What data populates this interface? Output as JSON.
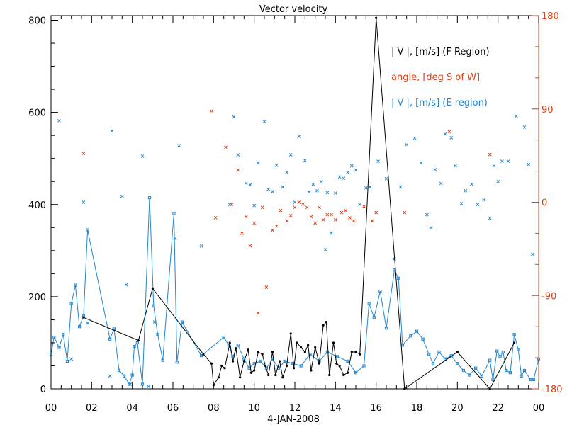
{
  "chart_data": {
    "type": "line",
    "title": "Vector velocity",
    "xlabel": "4-JAN-2008",
    "x_ticks": [
      "00",
      "02",
      "04",
      "06",
      "08",
      "10",
      "12",
      "14",
      "16",
      "18",
      "20",
      "22",
      "00"
    ],
    "xlim": [
      0,
      24
    ],
    "left_axis": {
      "ylim": [
        0,
        810
      ],
      "ticks": [
        "0",
        "200",
        "400",
        "600",
        "800"
      ]
    },
    "right_axis": {
      "ylim": [
        -180,
        180
      ],
      "ticks": [
        "-180",
        "-90",
        "0",
        "90",
        "180"
      ],
      "color": "#d94016"
    },
    "legend_position": "top-right",
    "colors": {
      "f_region": "#000000",
      "angle": "#d94016",
      "e_region": "#1f86d1",
      "e_cross": "#1f86d1"
    },
    "series": [
      {
        "name": "| V |, [m/s] (F Region)",
        "axis": "left",
        "style": "line-markers",
        "x": [
          1.6,
          4.3,
          5.0,
          7.5,
          7.9,
          8.0,
          8.25,
          8.4,
          8.55,
          8.8,
          8.95,
          9.1,
          9.3,
          9.5,
          9.7,
          9.85,
          10.0,
          10.2,
          10.4,
          10.55,
          10.7,
          10.9,
          11.05,
          11.25,
          11.4,
          11.6,
          11.8,
          11.95,
          12.1,
          12.3,
          12.5,
          12.65,
          12.8,
          13.0,
          13.2,
          13.4,
          13.55,
          13.7,
          13.9,
          14.05,
          14.2,
          14.4,
          14.6,
          14.8,
          15.0,
          15.2,
          16.0,
          17.4,
          20.0,
          21.6,
          22.8
        ],
        "y": [
          155,
          105,
          218,
          75,
          55,
          8,
          25,
          50,
          45,
          100,
          60,
          88,
          25,
          60,
          85,
          35,
          40,
          80,
          75,
          50,
          30,
          80,
          30,
          60,
          25,
          50,
          120,
          45,
          100,
          90,
          80,
          95,
          40,
          90,
          55,
          138,
          145,
          30,
          100,
          55,
          50,
          30,
          35,
          80,
          80,
          75,
          805,
          0,
          80,
          0,
          100
        ]
      },
      {
        "name": "angle, [deg S of W]",
        "axis": "right",
        "style": "crosses",
        "x": [
          1.6,
          7.9,
          8.1,
          8.6,
          8.9,
          9.2,
          9.4,
          9.6,
          9.8,
          10.0,
          10.2,
          10.4,
          10.6,
          10.9,
          11.1,
          11.3,
          11.6,
          11.8,
          12.0,
          12.2,
          12.4,
          12.6,
          12.8,
          13.0,
          13.2,
          13.4,
          13.6,
          13.8,
          14.0,
          14.3,
          14.5,
          14.7,
          14.9,
          15.4,
          15.8,
          16.0,
          17.4,
          19.6,
          21.6
        ],
        "y": [
          47,
          88,
          -15,
          53,
          -2,
          31,
          -30,
          -14,
          -42,
          -20,
          -107,
          -5,
          -82,
          -27,
          -23,
          -8,
          -18,
          -13,
          -5,
          0,
          -2,
          -5,
          -14,
          -20,
          -5,
          -17,
          -12,
          -12,
          -17,
          -10,
          -8,
          -15,
          -18,
          -4,
          -18,
          -10,
          -10,
          68,
          46
        ]
      },
      {
        "name": "| V |, [m/s] (E region)",
        "axis": "left",
        "style": "line-markers",
        "x": [
          0.0,
          0.15,
          0.4,
          0.6,
          0.8,
          1.0,
          1.2,
          1.4,
          1.6,
          1.8,
          2.9,
          3.1,
          3.35,
          3.6,
          3.85,
          4.0,
          4.1,
          4.25,
          4.5,
          4.85,
          5.05,
          5.25,
          5.5,
          6.05,
          6.2,
          6.45,
          7.4,
          8.5,
          8.75,
          8.95,
          9.2,
          9.5,
          9.75,
          10.0,
          10.3,
          10.6,
          10.9,
          11.2,
          11.5,
          11.9,
          12.3,
          12.75,
          13.2,
          13.6,
          14.1,
          14.6,
          15.0,
          15.4,
          15.65,
          15.9,
          16.2,
          16.5,
          16.9,
          17.1,
          17.3,
          17.7,
          18.0,
          18.3,
          18.6,
          18.8,
          19.1,
          19.4,
          19.7,
          20.0,
          20.3,
          20.6,
          20.9,
          21.2,
          21.6,
          21.75,
          21.95,
          22.1,
          22.25,
          22.4,
          22.6,
          22.8,
          23.0,
          23.15,
          23.3,
          23.6,
          23.75,
          24.0
        ],
        "y": [
          75,
          112,
          90,
          118,
          60,
          185,
          225,
          135,
          158,
          345,
          108,
          130,
          40,
          28,
          10,
          30,
          92,
          100,
          10,
          415,
          180,
          118,
          62,
          380,
          58,
          145,
          72,
          112,
          95,
          70,
          95,
          65,
          45,
          55,
          60,
          45,
          65,
          45,
          60,
          55,
          50,
          75,
          60,
          80,
          70,
          60,
          35,
          50,
          185,
          155,
          212,
          132,
          258,
          240,
          95,
          115,
          125,
          108,
          75,
          55,
          80,
          65,
          72,
          55,
          40,
          30,
          45,
          28,
          62,
          20,
          82,
          70,
          80,
          40,
          35,
          118,
          85,
          28,
          40,
          20,
          20,
          65
        ]
      },
      {
        "name": "",
        "axis": "left",
        "style": "crosses",
        "x": [
          0.4,
          1.0,
          1.6,
          1.8,
          2.9,
          3.0,
          3.5,
          3.7,
          3.9,
          4.5,
          4.8,
          5.1,
          6.1,
          6.3,
          7.4,
          8.8,
          9.0,
          9.2,
          9.6,
          9.8,
          10.0,
          10.2,
          10.5,
          10.7,
          10.9,
          11.1,
          11.4,
          11.6,
          11.8,
          12.0,
          12.2,
          12.5,
          12.7,
          12.9,
          13.1,
          13.3,
          13.5,
          13.6,
          13.8,
          14.0,
          14.2,
          14.4,
          14.6,
          14.8,
          15.0,
          15.2,
          15.5,
          15.7,
          16.1,
          16.5,
          16.9,
          17.2,
          17.5,
          17.9,
          18.2,
          18.5,
          18.7,
          18.9,
          19.2,
          19.4,
          19.7,
          19.9,
          20.2,
          20.4,
          20.7,
          21.0,
          21.3,
          21.6,
          21.8,
          22.0,
          22.2,
          22.5,
          22.9,
          23.3,
          23.5,
          23.7
        ],
        "y": [
          582,
          65,
          405,
          143,
          28,
          560,
          418,
          226,
          10,
          505,
          5,
          145,
          326,
          528,
          310,
          400,
          590,
          508,
          446,
          443,
          398,
          490,
          580,
          433,
          428,
          485,
          438,
          470,
          508,
          405,
          548,
          496,
          428,
          444,
          430,
          450,
          302,
          426,
          338,
          425,
          460,
          457,
          470,
          484,
          475,
          400,
          436,
          438,
          494,
          456,
          282,
          438,
          530,
          544,
          490,
          378,
          350,
          476,
          446,
          553,
          545,
          484,
          402,
          430,
          444,
          400,
          410,
          370,
          484,
          450,
          494,
          494,
          592,
          568,
          487,
          292
        ]
      }
    ]
  }
}
